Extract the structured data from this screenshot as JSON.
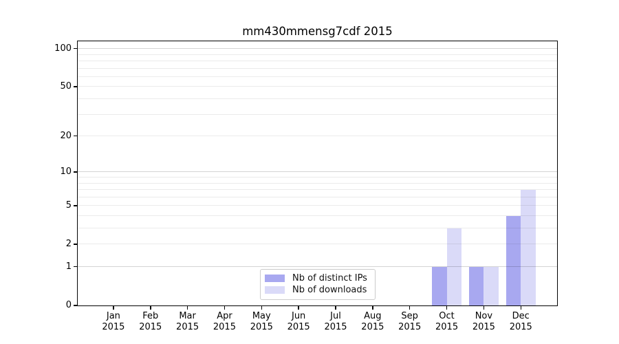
{
  "chart_data": {
    "type": "bar",
    "title": "mm430mmensg7cdf 2015",
    "months": [
      "Jan",
      "Feb",
      "Mar",
      "Apr",
      "May",
      "Jun",
      "Jul",
      "Aug",
      "Sep",
      "Oct",
      "Nov",
      "Dec"
    ],
    "year": "2015",
    "series": [
      {
        "name": "Nb of distinct IPs",
        "color": "#a8a8f0",
        "values": [
          0,
          0,
          0,
          0,
          0,
          0,
          0,
          0,
          0,
          1,
          1,
          4
        ]
      },
      {
        "name": "Nb of downloads",
        "color": "#dadaf8",
        "values": [
          0,
          0,
          0,
          0,
          0,
          0,
          0,
          0,
          0,
          3,
          1,
          7
        ]
      }
    ],
    "yscale": "log1p",
    "y_ticks": [
      0,
      1,
      2,
      5,
      10,
      20,
      50,
      100
    ],
    "ylim": [
      0,
      113
    ],
    "grid": {
      "major_lines": [
        1,
        10,
        100
      ],
      "minor_lines": [
        2,
        3,
        4,
        5,
        6,
        7,
        8,
        9,
        20,
        30,
        40,
        50,
        60,
        70,
        80,
        90
      ],
      "major_color": "#d4d4d4",
      "minor_color": "#ebebeb"
    },
    "legend": {
      "position": "inside-bottom-center",
      "entries": [
        "Nb of distinct IPs",
        "Nb of downloads"
      ]
    }
  }
}
